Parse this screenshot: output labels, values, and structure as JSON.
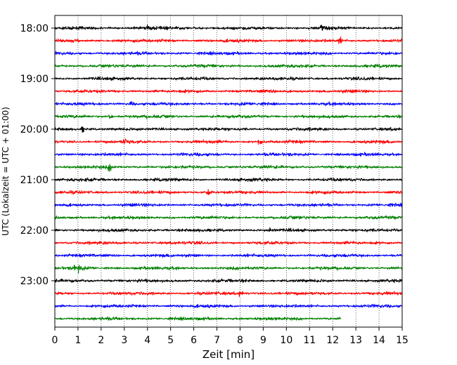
{
  "chart_data": {
    "type": "line",
    "xlabel": "Zeit  [min]",
    "ylabel": "UTC (Lokalzeit = UTC + 01:00)",
    "xlim": [
      0,
      15
    ],
    "x_ticks": [
      "0",
      "1",
      "2",
      "3",
      "4",
      "5",
      "6",
      "7",
      "8",
      "9",
      "10",
      "11",
      "12",
      "13",
      "14",
      "15"
    ],
    "y_ticks": [
      "18:00",
      "19:00",
      "20:00",
      "21:00",
      "22:00",
      "23:00"
    ],
    "grid": "vertical dotted",
    "colors": [
      "#000000",
      "#ff0000",
      "#0000ff",
      "#008000"
    ],
    "row_start_times": [
      "18:00",
      "18:15",
      "18:30",
      "18:45",
      "19:00",
      "19:15",
      "19:30",
      "19:45",
      "20:00",
      "20:15",
      "20:30",
      "20:45",
      "21:00",
      "21:15",
      "21:30",
      "21:45",
      "22:00",
      "22:15",
      "22:30",
      "22:45",
      "23:00",
      "23:15",
      "23:30",
      "23:45"
    ],
    "last_trace_end_min": 12.35,
    "events": [
      {
        "row": 0,
        "t": 11.5
      },
      {
        "row": 0,
        "t": 4.0
      },
      {
        "row": 1,
        "t": 12.3
      },
      {
        "row": 6,
        "t": 3.25
      },
      {
        "row": 7,
        "t": 2.35
      },
      {
        "row": 8,
        "t": 1.2
      },
      {
        "row": 9,
        "t": 3.0
      },
      {
        "row": 9,
        "t": 8.8
      },
      {
        "row": 11,
        "t": 2.35
      },
      {
        "row": 13,
        "t": 6.6
      },
      {
        "row": 16,
        "t": 9.3
      },
      {
        "row": 19,
        "t": 0.8
      },
      {
        "row": 19,
        "t": 1.05
      },
      {
        "row": 21,
        "t": 8.0
      }
    ]
  }
}
